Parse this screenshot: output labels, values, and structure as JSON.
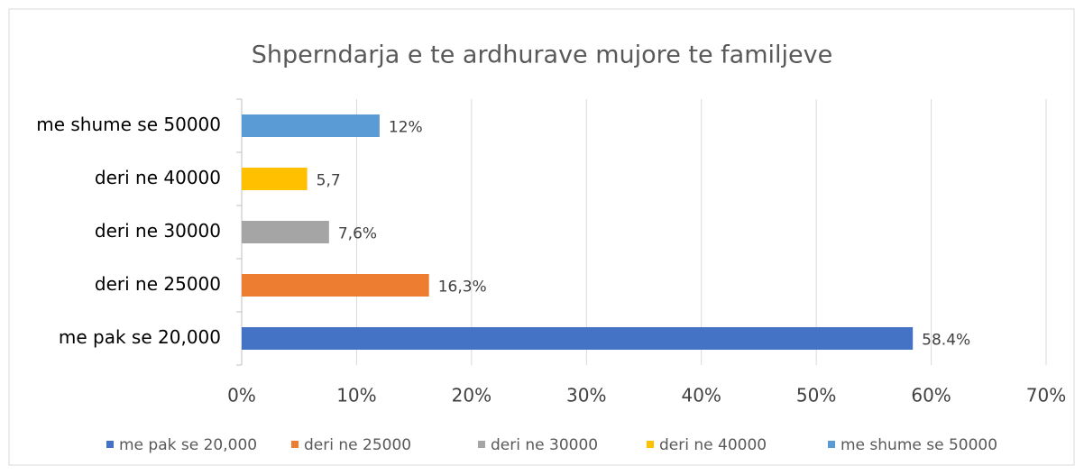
{
  "chart_data": {
    "type": "bar",
    "orientation": "horizontal",
    "title": "Shperndarja e te ardhurave mujore te familjeve",
    "categories": [
      "me pak se 20,000",
      "deri ne 25000",
      "deri ne 30000",
      "deri ne 40000",
      "me shume se 50000"
    ],
    "values": [
      58.4,
      16.3,
      7.6,
      5.7,
      12
    ],
    "value_labels": [
      "58.4%",
      "16,3%",
      "7,6%",
      "5,7",
      "12%"
    ],
    "colors": [
      "#4472c4",
      "#ed7d31",
      "#a5a5a5",
      "#ffc000",
      "#5b9bd5"
    ],
    "xlim": [
      0,
      70
    ],
    "xticks": [
      {
        "value": 0,
        "label": "0%"
      },
      {
        "value": 10,
        "label": "10%"
      },
      {
        "value": 20,
        "label": "20%"
      },
      {
        "value": 30,
        "label": "30%"
      },
      {
        "value": 40,
        "label": "40%"
      },
      {
        "value": 50,
        "label": "50%"
      },
      {
        "value": 60,
        "label": "60%"
      },
      {
        "value": 70,
        "label": "70%"
      }
    ],
    "grid": true,
    "legend": "bottom"
  }
}
